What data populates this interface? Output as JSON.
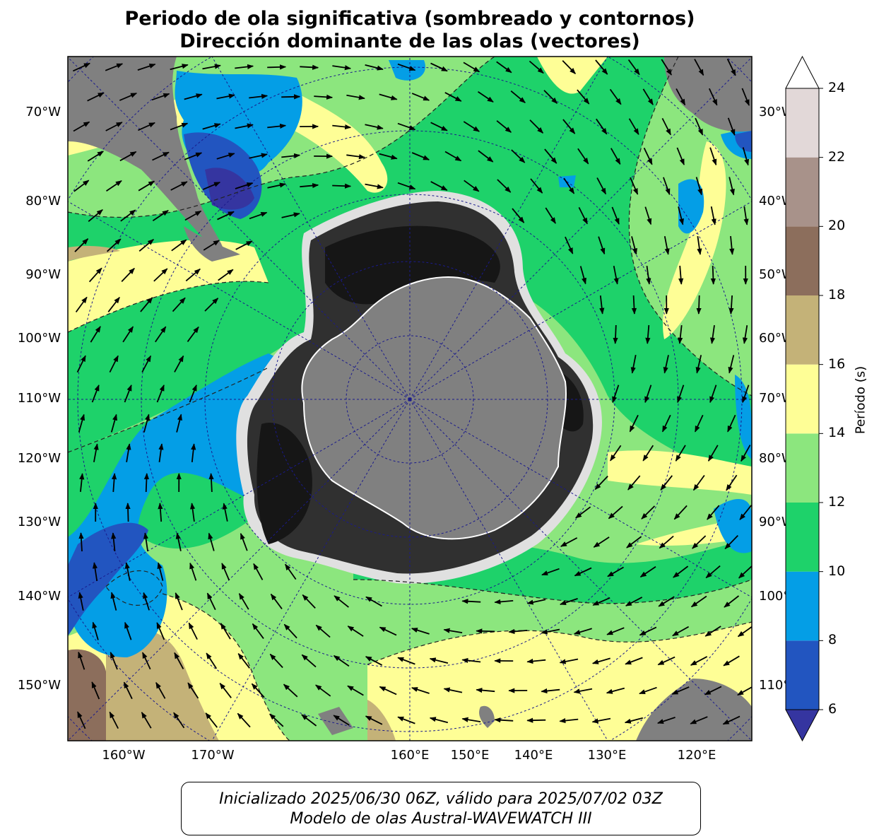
{
  "title": {
    "line1": "Periodo de ola significativa (sombreado y contornos)",
    "line2": "Dirección dominante de las olas (vectores)"
  },
  "map": {
    "projection": "south-polar-stereographic",
    "colors": {
      "land": "#808080",
      "ice_dark": "#161616",
      "ice_mid": "#303030",
      "grid": "#1a1a8c"
    },
    "left_ticks": [
      "70°W",
      "80°W",
      "90°W",
      "100°W",
      "110°W",
      "120°W",
      "130°W",
      "140°W",
      "150°W"
    ],
    "right_ticks": [
      "30°W",
      "40°W",
      "50°W",
      "60°W",
      "70°W",
      "80°W",
      "90°W",
      "100°W",
      "110°W"
    ],
    "bottom_ticks": [
      "160°W",
      "170°W",
      "160°E",
      "150°E",
      "140°E",
      "130°E",
      "120°E"
    ]
  },
  "colorbar": {
    "label": "Período (s)",
    "ticks": [
      "6",
      "8",
      "10",
      "12",
      "14",
      "16",
      "18",
      "20",
      "22",
      "24"
    ],
    "levels": [
      {
        "min": 6,
        "max": 8,
        "color": "#2255c0"
      },
      {
        "min": 8,
        "max": 10,
        "color": "#049ee6"
      },
      {
        "min": 10,
        "max": 12,
        "color": "#1ed26a"
      },
      {
        "min": 12,
        "max": 14,
        "color": "#8ce67e"
      },
      {
        "min": 14,
        "max": 16,
        "color": "#fefe96"
      },
      {
        "min": 16,
        "max": 18,
        "color": "#c4b278"
      },
      {
        "min": 18,
        "max": 20,
        "color": "#8c6e5c"
      },
      {
        "min": 20,
        "max": 22,
        "color": "#a8928a"
      },
      {
        "min": 22,
        "max": 24,
        "color": "#e2d8d8"
      }
    ],
    "under_color": "#3535a0",
    "over_color": "#ffffff"
  },
  "footer": {
    "line1": "Inicializado 2025/06/30 06Z, válido para 2025/07/02 03Z",
    "line2": "Modelo de olas Austral-WAVEWATCH III"
  }
}
